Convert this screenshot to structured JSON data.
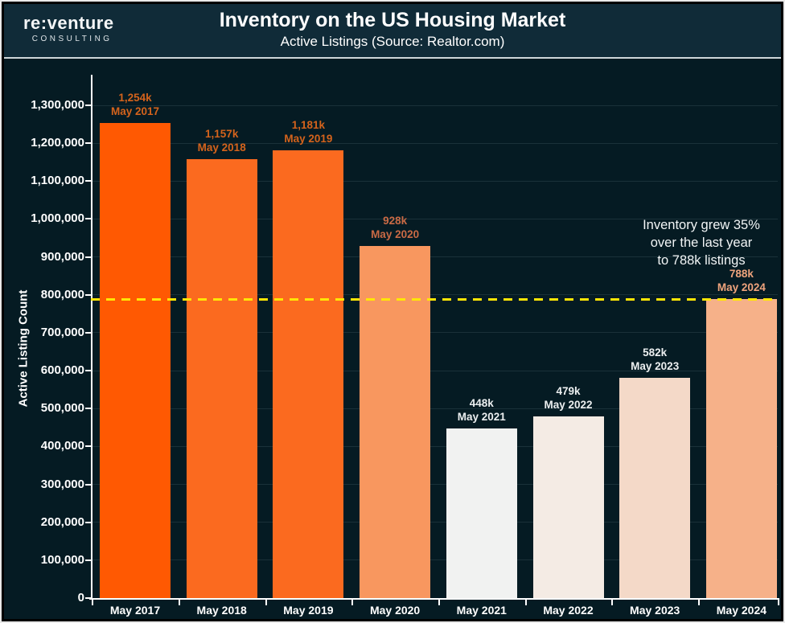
{
  "header": {
    "brand": "re:venture",
    "brand_tagline": "CONSULTING",
    "title": "Inventory on the US Housing Market",
    "subtitle": "Active Listings (Source: Realtor.com)"
  },
  "chart_data": {
    "type": "bar",
    "title": "Inventory on the US Housing Market",
    "subtitle": "Active Listings (Source: Realtor.com)",
    "xlabel": "",
    "ylabel": "Active Listing Count",
    "ylim": [
      0,
      1300000
    ],
    "grid": true,
    "legend": "none",
    "categories": [
      "May 2017",
      "May 2018",
      "May 2019",
      "May 2020",
      "May 2021",
      "May 2022",
      "May 2023",
      "May 2024"
    ],
    "values": [
      1254000,
      1157000,
      1181000,
      928000,
      448000,
      479000,
      582000,
      788000
    ],
    "value_labels": [
      "1,254k",
      "1,157k",
      "1,181k",
      "928k",
      "448k",
      "479k",
      "582k",
      "788k"
    ],
    "bar_colors": [
      "#ff5902",
      "#fb6a1f",
      "#fb6a1f",
      "#f8975f",
      "#f1f2f1",
      "#f4ebe4",
      "#f4d9c8",
      "#f6b189"
    ],
    "bar_label_colors": [
      "#d4631c",
      "#d4631c",
      "#d4631c",
      "#c96a45",
      "#eceff0",
      "#eceff0",
      "#eceff0",
      "#efa47d"
    ],
    "y_ticks": [
      {
        "value": 0,
        "label": "0"
      },
      {
        "value": 100000,
        "label": "100,000"
      },
      {
        "value": 200000,
        "label": "200,000"
      },
      {
        "value": 300000,
        "label": "300,000"
      },
      {
        "value": 400000,
        "label": "400,000"
      },
      {
        "value": 500000,
        "label": "500,000"
      },
      {
        "value": 600000,
        "label": "600,000"
      },
      {
        "value": 700000,
        "label": "700,000"
      },
      {
        "value": 800000,
        "label": "800,000"
      },
      {
        "value": 900000,
        "label": "900,000"
      },
      {
        "value": 1000000,
        "label": "1,000,000"
      },
      {
        "value": 1100000,
        "label": "1,100,000"
      },
      {
        "value": 1200000,
        "label": "1,200,000"
      },
      {
        "value": 1300000,
        "label": "1,300,000"
      }
    ],
    "reference_line": {
      "value": 788000,
      "color": "#ffe605",
      "style": "dashed"
    },
    "annotation": {
      "lines": [
        "Inventory grew 35%",
        "over the last year",
        "to 788k listings"
      ]
    }
  }
}
